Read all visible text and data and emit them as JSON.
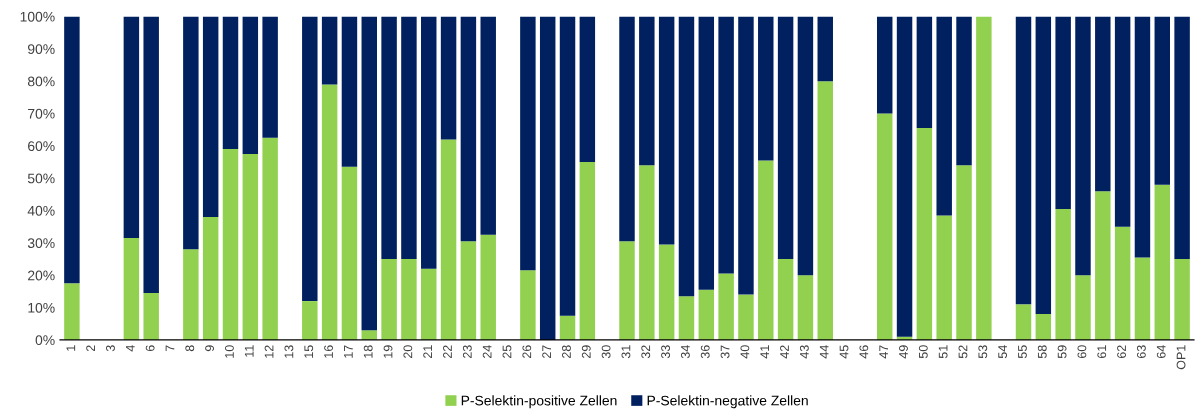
{
  "chart_data": {
    "type": "bar",
    "stacked": true,
    "categories": [
      "1",
      "2",
      "3",
      "4",
      "6",
      "7",
      "8",
      "9",
      "10",
      "11",
      "12",
      "13",
      "15",
      "16",
      "17",
      "18",
      "19",
      "20",
      "21",
      "22",
      "23",
      "24",
      "25",
      "26",
      "27",
      "28",
      "29",
      "30",
      "31",
      "32",
      "33",
      "34",
      "36",
      "37",
      "40",
      "41",
      "42",
      "43",
      "44",
      "45",
      "46",
      "47",
      "49",
      "50",
      "51",
      "52",
      "53",
      "54",
      "55",
      "58",
      "59",
      "60",
      "61",
      "62",
      "63",
      "64",
      "OP1"
    ],
    "series": [
      {
        "name": "P-Selektin-positive Zellen",
        "color": "#92d050",
        "values": [
          17.5,
          null,
          null,
          31.5,
          14.5,
          null,
          28,
          38,
          59,
          57.5,
          62.5,
          null,
          12,
          79,
          53.5,
          3,
          25,
          25,
          22,
          62,
          30.5,
          32.5,
          null,
          21.5,
          0,
          7.5,
          55,
          null,
          30.5,
          54,
          29.5,
          13.5,
          15.5,
          20.5,
          14,
          55.5,
          25,
          20,
          80,
          null,
          null,
          70,
          1,
          65.5,
          38.5,
          54,
          100,
          null,
          11,
          8,
          40.5,
          20,
          46,
          35,
          25.5,
          48,
          25
        ]
      },
      {
        "name": "P-Selektin-negative Zellen",
        "color": "#002060",
        "values": [
          82.5,
          null,
          null,
          68.5,
          85.5,
          null,
          72,
          62,
          41,
          42.5,
          37.5,
          null,
          88,
          21,
          46.5,
          97,
          75,
          75,
          78,
          38,
          69.5,
          67.5,
          null,
          78.5,
          100,
          92.5,
          45,
          null,
          69.5,
          46,
          70.5,
          86.5,
          84.5,
          79.5,
          86,
          44.5,
          75,
          80,
          20,
          null,
          null,
          30,
          99,
          34.5,
          61.5,
          46,
          0,
          null,
          89,
          92,
          59.5,
          80,
          54,
          65,
          74.5,
          52,
          75
        ]
      }
    ],
    "ylim": [
      0,
      100
    ],
    "yticks": [
      {
        "value": 0,
        "label": "0%"
      },
      {
        "value": 10,
        "label": "10%"
      },
      {
        "value": 20,
        "label": "20%"
      },
      {
        "value": 30,
        "label": "30%"
      },
      {
        "value": 40,
        "label": "40%"
      },
      {
        "value": 50,
        "label": "50%"
      },
      {
        "value": 60,
        "label": "60%"
      },
      {
        "value": 70,
        "label": "70%"
      },
      {
        "value": 80,
        "label": "80%"
      },
      {
        "value": 90,
        "label": "90%"
      },
      {
        "value": 100,
        "label": "100%"
      }
    ],
    "grid": false,
    "legend": "bottom"
  }
}
